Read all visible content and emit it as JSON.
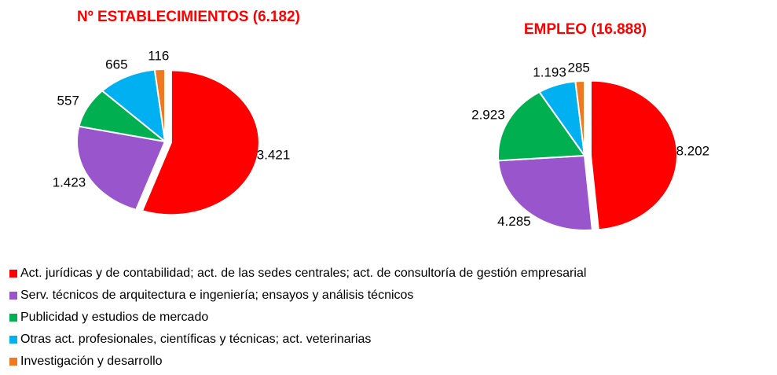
{
  "chart_data": [
    {
      "type": "pie",
      "title": "Nº ESTABLECIMIENTOS (6.182)",
      "categories": [
        "Act. jurídicas y de contabilidad; act. de las sedes centrales; act. de consultoría de gestión empresarial",
        "Serv. técnicos de arquitectura e ingeniería; ensayos y análisis técnicos",
        "Publicidad y estudios de mercado",
        "Otras act. profesionales, científicas y técnicas; act. veterinarias",
        "Investigación y desarrollo"
      ],
      "values": [
        3421,
        1423,
        557,
        665,
        116
      ],
      "value_labels": [
        "3.421",
        "1.423",
        "557",
        "665",
        "116"
      ],
      "colors": [
        "#ff0000",
        "#9955cc",
        "#00b050",
        "#00b0f0",
        "#f07820"
      ]
    },
    {
      "type": "pie",
      "title": "EMPLEO (16.888)",
      "values": [
        8202,
        4285,
        2923,
        1193,
        285
      ],
      "value_labels": [
        "8.202",
        "4.285",
        "2.923",
        "1.193",
        "285"
      ],
      "colors": [
        "#ff0000",
        "#9955cc",
        "#00b050",
        "#00b0f0",
        "#f07820"
      ]
    }
  ]
}
